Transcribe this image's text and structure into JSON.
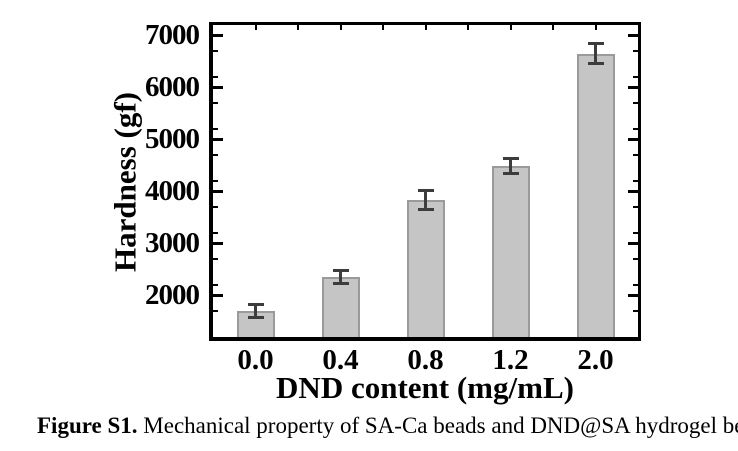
{
  "figure": {
    "caption_label": "Figure S1.",
    "caption_text": " Mechanical property of SA-Ca beads and DND@SA hydrogel beads."
  },
  "chart_data": {
    "type": "bar",
    "categories": [
      "0.0",
      "0.4",
      "0.8",
      "1.2",
      "2.0"
    ],
    "values": [
      1700,
      2350,
      3830,
      4490,
      6650
    ],
    "error_bars": [
      130,
      130,
      180,
      140,
      190
    ],
    "title": "",
    "xlabel": "DND content (mg/mL)",
    "ylabel": "Hardness (gf)",
    "ylim": [
      1200,
      7200
    ],
    "yticks": [
      2000,
      3000,
      4000,
      5000,
      6000,
      7000
    ],
    "minor_tick_step": 500,
    "grid": false,
    "legend_position": "none",
    "colors": {
      "bar_fill": "#c5c5c5",
      "bar_border": "#9a9a9a",
      "error_bar": "#3c3c3c",
      "axis": "#000000"
    }
  }
}
